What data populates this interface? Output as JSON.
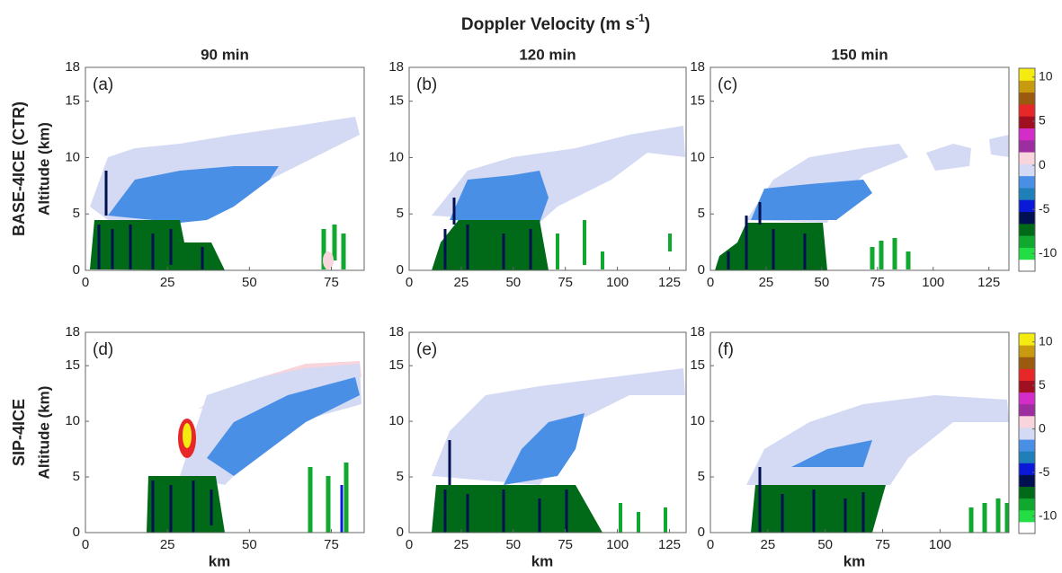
{
  "chart_data": {
    "type": "contour",
    "title": {
      "text": "Doppler Velocity (m s",
      "superscript": "-1",
      "tail": ")"
    },
    "column_titles": [
      "90 min",
      "120 min",
      "150 min"
    ],
    "row_labels": [
      "BASE-4ICE (CTR)",
      "SIP-4ICE"
    ],
    "ylabel": "Altitude (km)",
    "xlabel": "km",
    "ylim": [
      0,
      18
    ],
    "yticks": [
      0,
      5,
      10,
      15,
      18
    ],
    "panels": [
      {
        "label": "(a)",
        "xlim": [
          0,
          85
        ],
        "xticks": [
          0,
          25,
          50,
          75
        ]
      },
      {
        "label": "(b)",
        "xlim": [
          0,
          133
        ],
        "xticks": [
          0,
          25,
          50,
          75,
          100,
          125
        ]
      },
      {
        "label": "(c)",
        "xlim": [
          0,
          134
        ],
        "xticks": [
          0,
          25,
          50,
          75,
          100,
          125
        ]
      },
      {
        "label": "(d)",
        "xlim": [
          0,
          85
        ],
        "xticks": [
          0,
          25,
          50,
          75
        ]
      },
      {
        "label": "(e)",
        "xlim": [
          0,
          133
        ],
        "xticks": [
          0,
          25,
          50,
          75,
          100,
          125
        ]
      },
      {
        "label": "(f)",
        "xlim": [
          0,
          130
        ],
        "xticks": [
          0,
          25,
          50,
          75,
          100
        ]
      }
    ],
    "colorbar": {
      "clim": [
        -12,
        11
      ],
      "ticks": [
        -10,
        -5,
        0,
        5,
        10
      ],
      "colors": [
        "#ffffff",
        "#22dd44",
        "#11a830",
        "#006a18",
        "#001050",
        "#0a18d8",
        "#1f7fb8",
        "#4a8fe6",
        "#d4daf4",
        "#f8d4dc",
        "#9c2ea0",
        "#d42cc8",
        "#a01020",
        "#e82828",
        "#9a5a10",
        "#c89a10",
        "#f4ec10"
      ]
    }
  }
}
